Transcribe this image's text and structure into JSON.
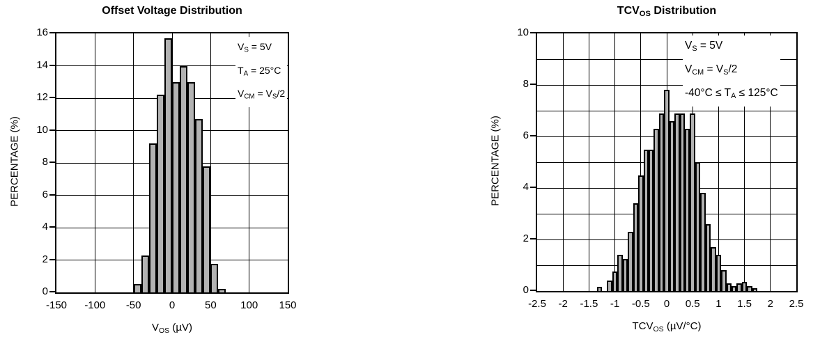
{
  "styles": {
    "background": "#ffffff",
    "line_color": "#000000",
    "bar_fill": "#b2b2b2",
    "text_color": "#000000"
  },
  "chart_data": [
    {
      "type": "bar",
      "title": "Offset Voltage Distribution",
      "title_rich": [
        {
          "t": "Offset Voltage Distribution"
        }
      ],
      "ylabel": "PERCENTAGE (%)",
      "xlabel": "V_OS (µV)",
      "xlabel_rich": [
        {
          "t": "V"
        },
        {
          "t": "OS",
          "sub": true
        },
        {
          "t": " (µV)"
        }
      ],
      "xlim": [
        -150,
        150
      ],
      "ylim": [
        0,
        16
      ],
      "grid": true,
      "legend": null,
      "bin_start": -50,
      "bin_width": 10,
      "values": [
        0.5,
        2.3,
        9.2,
        12.2,
        15.7,
        13.0,
        14.0,
        13.0,
        10.7,
        7.8,
        1.75,
        0.2
      ],
      "x_ticks": [
        {
          "v": -150,
          "l": "-150"
        },
        {
          "v": -100,
          "l": "-100"
        },
        {
          "v": -50,
          "l": "-50"
        },
        {
          "v": 0,
          "l": "0"
        },
        {
          "v": 50,
          "l": "50"
        },
        {
          "v": 100,
          "l": "100"
        },
        {
          "v": 150,
          "l": "150"
        }
      ],
      "y_ticks": [
        {
          "v": 0,
          "l": "0"
        },
        {
          "v": 2,
          "l": "2"
        },
        {
          "v": 4,
          "l": "4"
        },
        {
          "v": 6,
          "l": "6"
        },
        {
          "v": 8,
          "l": "8"
        },
        {
          "v": 10,
          "l": "10"
        },
        {
          "v": 12,
          "l": "12"
        },
        {
          "v": 14,
          "l": "14"
        },
        {
          "v": 16,
          "l": "16"
        }
      ],
      "x_grid": [
        -100,
        -50,
        0,
        50,
        100
      ],
      "y_grid": [
        2,
        4,
        6,
        8,
        10,
        12,
        14
      ],
      "annotations": [
        "V_S = 5V",
        "T_A = 25°C",
        "V_CM = V_S/2"
      ],
      "annotations_rich": [
        [
          {
            "t": "V"
          },
          {
            "t": "S",
            "sub": true
          },
          {
            "t": " = 5V"
          }
        ],
        [
          {
            "t": "T"
          },
          {
            "t": "A",
            "sub": true
          },
          {
            "t": " = 25°C"
          }
        ],
        [
          {
            "t": "V"
          },
          {
            "t": "CM",
            "sub": true
          },
          {
            "t": " = V"
          },
          {
            "t": "S",
            "sub": true
          },
          {
            "t": "/2"
          }
        ]
      ]
    },
    {
      "type": "bar",
      "title": "TCV_OS Distribution",
      "title_rich": [
        {
          "t": "TCV"
        },
        {
          "t": "OS",
          "sub": true
        },
        {
          "t": " Distribution"
        }
      ],
      "ylabel": "PERCENTAGE (%)",
      "xlabel": "TCV_OS (µV/°C)",
      "xlabel_rich": [
        {
          "t": "TCV"
        },
        {
          "t": "OS",
          "sub": true
        },
        {
          "t": " (µV/°C)"
        }
      ],
      "xlim": [
        -2.5,
        2.5
      ],
      "ylim": [
        0,
        10
      ],
      "grid": true,
      "legend": null,
      "bin_start": -1.35,
      "bin_width": 0.1,
      "values": [
        0.15,
        0,
        0.4,
        0.75,
        1.4,
        1.25,
        2.3,
        3.4,
        4.5,
        5.5,
        5.5,
        6.3,
        6.9,
        7.8,
        6.6,
        6.9,
        6.9,
        6.3,
        6.9,
        5.0,
        3.8,
        2.6,
        1.7,
        1.4,
        0.8,
        0.3,
        0.2,
        0.3,
        0.35,
        0.2,
        0.1
      ],
      "x_ticks": [
        {
          "v": -2.5,
          "l": "-2.5"
        },
        {
          "v": -2,
          "l": "-2"
        },
        {
          "v": -1.5,
          "l": "-1.5"
        },
        {
          "v": -1,
          "l": "-1"
        },
        {
          "v": -0.5,
          "l": "-0.5"
        },
        {
          "v": 0,
          "l": "0"
        },
        {
          "v": 0.5,
          "l": "0.5"
        },
        {
          "v": 1,
          "l": "1"
        },
        {
          "v": 1.5,
          "l": "1.5"
        },
        {
          "v": 2,
          "l": "2"
        },
        {
          "v": 2.5,
          "l": "2.5"
        }
      ],
      "y_ticks": [
        {
          "v": 0,
          "l": "0"
        },
        {
          "v": 2,
          "l": "2"
        },
        {
          "v": 4,
          "l": "4"
        },
        {
          "v": 6,
          "l": "6"
        },
        {
          "v": 8,
          "l": "8"
        },
        {
          "v": 10,
          "l": "10"
        }
      ],
      "x_grid": [
        -2,
        -1.5,
        -1,
        -0.5,
        0,
        0.5,
        1,
        1.5,
        2
      ],
      "y_grid": [
        1,
        2,
        3,
        4,
        5,
        6,
        7,
        8,
        9
      ],
      "annotations": [
        "V_S = 5V",
        "V_CM = V_S/2",
        "-40°C ≤ T_A ≤ 125°C"
      ],
      "annotations_rich": [
        [
          {
            "t": "V"
          },
          {
            "t": "S",
            "sub": true
          },
          {
            "t": " = 5V"
          }
        ],
        [
          {
            "t": "V"
          },
          {
            "t": "CM",
            "sub": true
          },
          {
            "t": " = V"
          },
          {
            "t": "S",
            "sub": true
          },
          {
            "t": "/2"
          }
        ],
        [
          {
            "t": "-40°C ≤ T"
          },
          {
            "t": "A",
            "sub": true
          },
          {
            "t": " ≤ 125°C"
          }
        ]
      ]
    }
  ]
}
